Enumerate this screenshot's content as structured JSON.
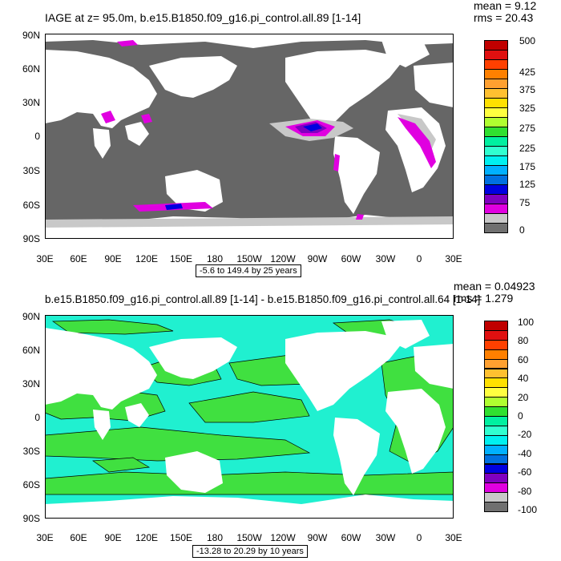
{
  "panels": [
    {
      "id": "top",
      "title": "IAGE at z=  95.0m, b.e15.B1850.f09_g16.pi_control.all.89 [1-14]",
      "mean": "mean = 9.12",
      "rms": "rms = 20.43",
      "range_text": "-5.6 to 149.4 by 25 years",
      "colorbar_labels": [
        "500",
        "425",
        "375",
        "325",
        "275",
        "225",
        "175",
        "125",
        "75",
        "0"
      ],
      "colorbar_colors": [
        "#c00000",
        "#e01010",
        "#ff4000",
        "#ff8000",
        "#ffa030",
        "#ffc030",
        "#ffe000",
        "#ffff40",
        "#b0ff30",
        "#30e030",
        "#00f0a0",
        "#30ffd0",
        "#00f0f0",
        "#00b0ff",
        "#0070e0",
        "#0000e0",
        "#8000c0",
        "#e000e0",
        "#c8c8c8",
        "#707070"
      ]
    },
    {
      "id": "bottom",
      "title": "b.e15.B1850.f09_g16.pi_control.all.89 [1-14] - b.e15.B1850.f09_g16.pi_control.all.64 [1-14]",
      "mean": "mean = 0.04923",
      "rms": "rms = 1.279",
      "range_text": "-13.28 to 20.29 by 10 years",
      "colorbar_labels": [
        "100",
        "80",
        "60",
        "40",
        "20",
        "0",
        "-20",
        "-40",
        "-60",
        "-80",
        "-100"
      ],
      "colorbar_colors": [
        "#c00000",
        "#e01010",
        "#ff4000",
        "#ff8000",
        "#ffa030",
        "#ffc030",
        "#ffe000",
        "#ffff40",
        "#b0ff30",
        "#30e030",
        "#00f0a0",
        "#30ffd0",
        "#00f0f0",
        "#00b0ff",
        "#0070e0",
        "#0000e0",
        "#8000c0",
        "#e000e0",
        "#c8c8c8",
        "#707070"
      ]
    }
  ],
  "lat_ticks": [
    "90N",
    "60N",
    "30N",
    "0",
    "30S",
    "60S",
    "90S"
  ],
  "lon_ticks": [
    "30E",
    "60E",
    "90E",
    "120E",
    "150E",
    "180",
    "150W",
    "120W",
    "90W",
    "60W",
    "30W",
    "0",
    "30E"
  ],
  "colors": {
    "ocean_top": "#666666",
    "land": "#ffffff",
    "ocean_bottom": "#20f0d0",
    "green_patches": "#40e040"
  }
}
